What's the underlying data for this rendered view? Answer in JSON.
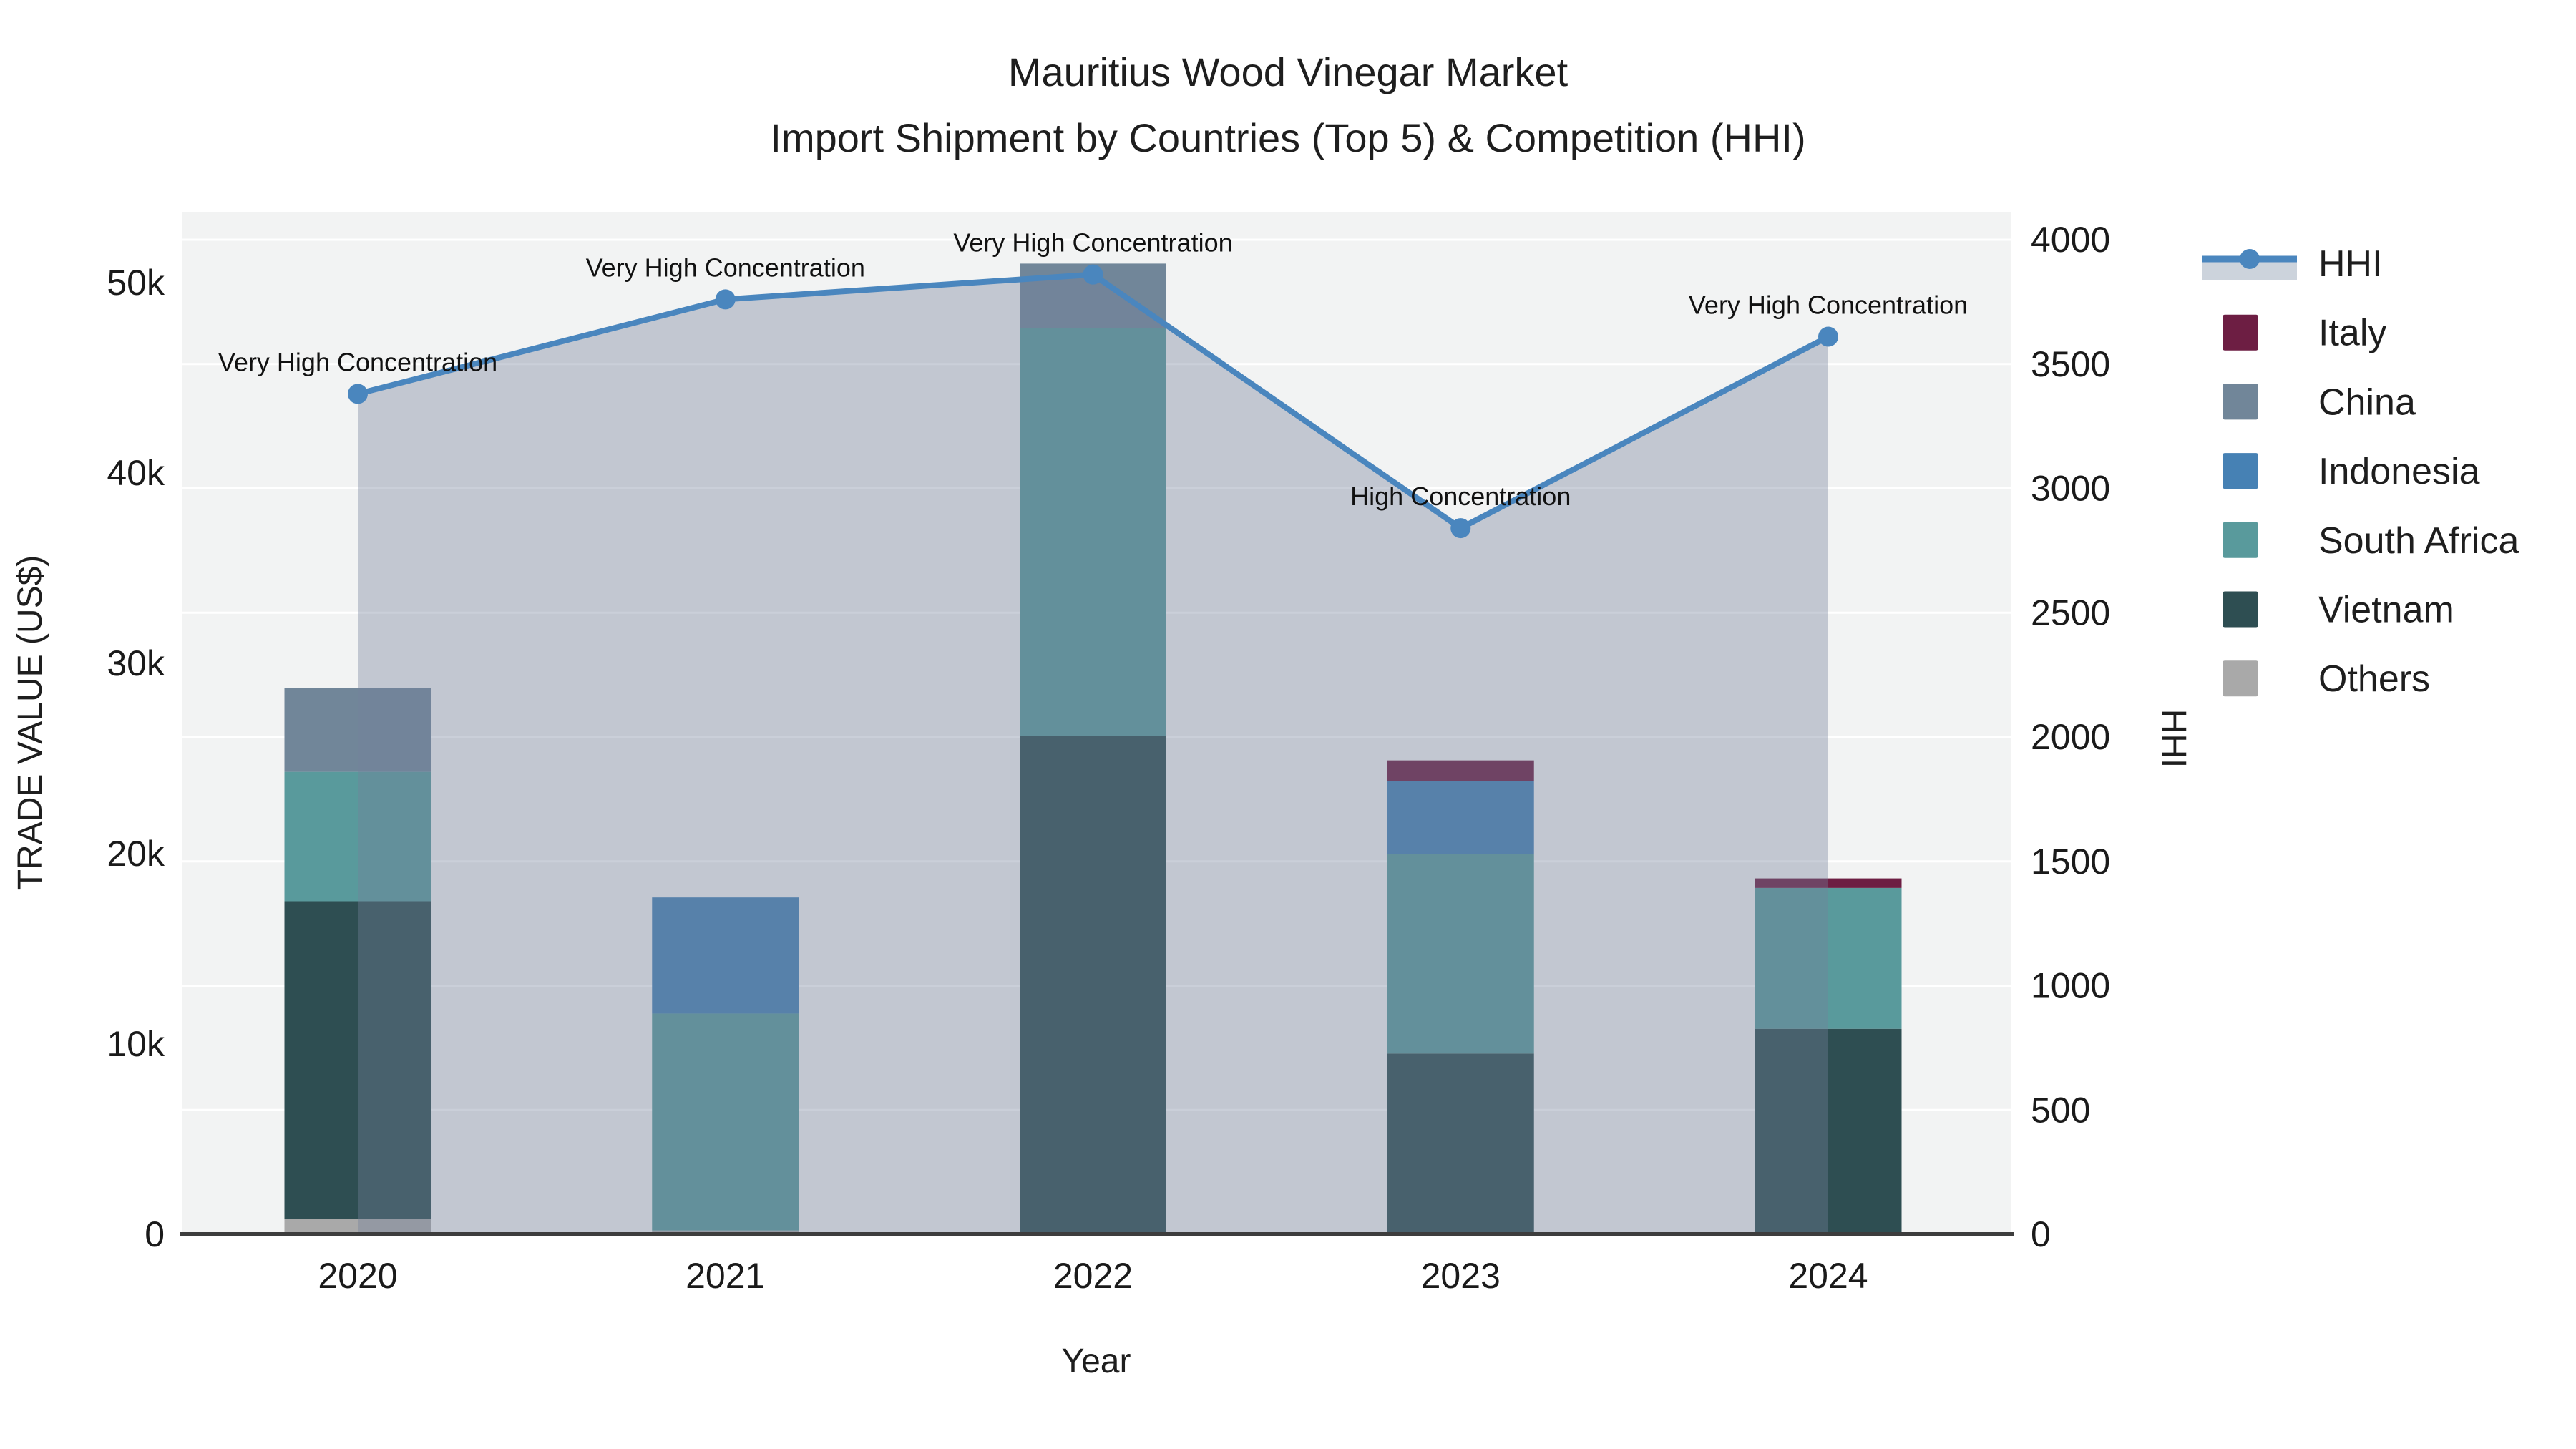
{
  "title": {
    "line1": "Mauritius Wood Vinegar Market",
    "line2": "Import Shipment by Countries (Top 5) & Competition (HHI)"
  },
  "axes": {
    "x": {
      "title": "Year"
    },
    "y_left": {
      "title": "TRADE VALUE (US$)"
    },
    "y_right": {
      "title": "HHI"
    }
  },
  "chart_data": {
    "type": "bar",
    "subtype": "stacked-bars-with-line-overlay-and-area-fill",
    "title": "Mauritius Wood Vinegar Market — Import Shipment by Countries (Top 5) & Competition (HHI)",
    "xlabel": "Year",
    "ylabel_left": "TRADE VALUE (US$)",
    "ylabel_right": "HHI",
    "categories": [
      "2020",
      "2021",
      "2022",
      "2023",
      "2024"
    ],
    "stack_order_bottom_to_top": [
      "Others",
      "Vietnam",
      "South Africa",
      "Indonesia",
      "China",
      "Italy"
    ],
    "series": [
      {
        "name": "Italy",
        "color": "#6d1e43",
        "values": [
          0,
          0,
          0,
          1100,
          500
        ]
      },
      {
        "name": "China",
        "color": "#718699",
        "values": [
          4400,
          0,
          3400,
          0,
          0
        ]
      },
      {
        "name": "Indonesia",
        "color": "#4681b4",
        "values": [
          0,
          6100,
          0,
          3800,
          0
        ]
      },
      {
        "name": "South Africa",
        "color": "#599a9c",
        "values": [
          6800,
          11400,
          21400,
          10500,
          7400
        ]
      },
      {
        "name": "Vietnam",
        "color": "#2e4e52",
        "values": [
          16700,
          0,
          26200,
          9500,
          10800
        ]
      },
      {
        "name": "Others",
        "color": "#a9a9a9",
        "values": [
          800,
          200,
          0,
          0,
          0
        ]
      }
    ],
    "bar_totals": [
      28700,
      17700,
      51000,
      24900,
      18700
    ],
    "line_series": {
      "name": "HHI",
      "color": "#4a86be",
      "area_fill": "rgba(115,128,154,0.38)",
      "axis": "right",
      "values": [
        3380,
        3760,
        3860,
        2840,
        3610
      ]
    },
    "annotations": [
      {
        "category": "2020",
        "text": "Very High Concentration"
      },
      {
        "category": "2021",
        "text": "Very High Concentration"
      },
      {
        "category": "2022",
        "text": "Very High Concentration"
      },
      {
        "category": "2023",
        "text": "High Concentration"
      },
      {
        "category": "2024",
        "text": "Very High Concentration"
      }
    ],
    "y_left_ticks": {
      "labels": [
        "0",
        "10k",
        "20k",
        "30k",
        "40k",
        "50k"
      ],
      "values": [
        0,
        10000,
        20000,
        30000,
        40000,
        50000
      ],
      "range": [
        0,
        53700
      ]
    },
    "y_right_ticks": {
      "labels": [
        "0",
        "500",
        "1000",
        "1500",
        "2000",
        "2500",
        "3000",
        "3500",
        "4000"
      ],
      "values": [
        0,
        500,
        1000,
        1500,
        2000,
        2500,
        3000,
        3500,
        4000
      ],
      "range": [
        0,
        4000
      ]
    },
    "grid": {
      "show": true,
      "color": "#ffffff",
      "based_on": "right-axis"
    },
    "plot_background": "#f2f3f3",
    "legend_position": "right"
  },
  "legend": {
    "items": [
      {
        "id": "hhi",
        "label": "HHI",
        "type": "line-marker",
        "color": "#4a86be",
        "band_color": "#ccd3dc"
      },
      {
        "id": "italy",
        "label": "Italy",
        "type": "swatch",
        "color": "#6d1e43"
      },
      {
        "id": "china",
        "label": "China",
        "type": "swatch",
        "color": "#718699"
      },
      {
        "id": "indonesia",
        "label": "Indonesia",
        "type": "swatch",
        "color": "#4681b4"
      },
      {
        "id": "south-africa",
        "label": "South Africa",
        "type": "swatch",
        "color": "#599a9c"
      },
      {
        "id": "vietnam",
        "label": "Vietnam",
        "type": "swatch",
        "color": "#2e4e52"
      },
      {
        "id": "others",
        "label": "Others",
        "type": "swatch",
        "color": "#a9a9a9"
      }
    ]
  }
}
